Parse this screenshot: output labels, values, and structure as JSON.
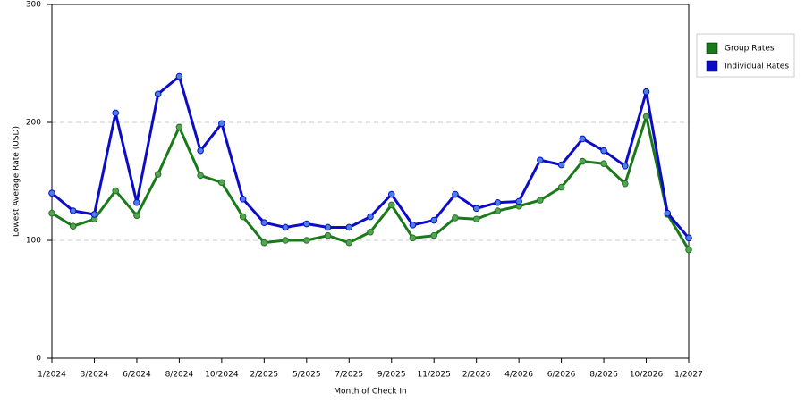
{
  "chart_data": {
    "type": "line",
    "x_label": "Month of Check In",
    "y_label": "Lowest Average Rate (USD)",
    "categories": [
      "1/2024",
      null,
      "3/2024",
      null,
      "6/2024",
      null,
      "8/2024",
      null,
      "10/2024",
      null,
      "2/2025",
      null,
      "5/2025",
      null,
      "7/2025",
      null,
      "9/2025",
      null,
      "11/2025",
      null,
      "2/2026",
      null,
      "4/2026",
      null,
      "6/2026",
      null,
      "8/2026",
      null,
      "10/2026",
      null,
      "1/2027"
    ],
    "series": [
      {
        "name": "Group Rates",
        "color": "#1a7a1a",
        "marker_color": "#5aa05a",
        "values": [
          123,
          112,
          118,
          142,
          121,
          156,
          196,
          155,
          149,
          120,
          98,
          100,
          100,
          104,
          98,
          107,
          130,
          102,
          104,
          119,
          118,
          125,
          129,
          134,
          145,
          167,
          165,
          148,
          205,
          122,
          92
        ]
      },
      {
        "name": "Individual Rates",
        "color": "#0c0cc8",
        "marker_color": "#4a80e0",
        "values": [
          140,
          125,
          122,
          208,
          132,
          224,
          239,
          176,
          199,
          135,
          115,
          111,
          114,
          111,
          111,
          120,
          139,
          113,
          117,
          139,
          127,
          132,
          133,
          168,
          164,
          186,
          176,
          163,
          226,
          123,
          102
        ]
      }
    ],
    "ylim": [
      0,
      300
    ],
    "yticks": [
      0,
      100,
      200,
      300
    ],
    "grid": true,
    "legend": "right"
  }
}
